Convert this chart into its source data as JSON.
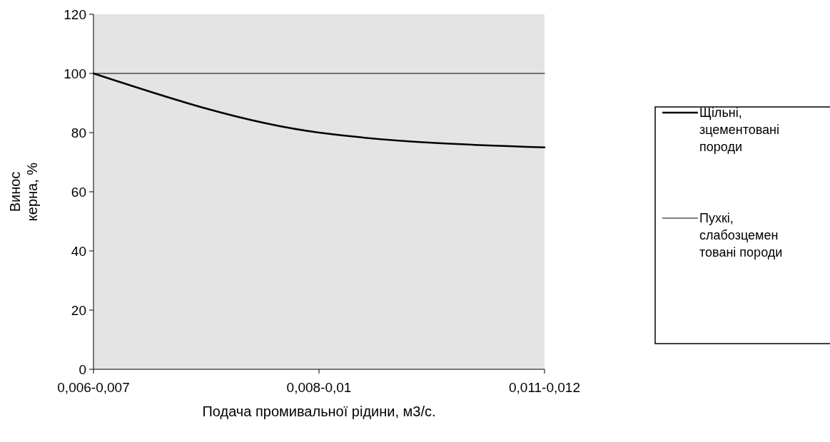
{
  "chart_data": {
    "type": "line",
    "xlabel": "Подача промивальної рідини, м3/с.",
    "ylabel": "Винос керна, %",
    "categories": [
      "0,006-0,007",
      "0,008-0,01",
      "0,011-0,012"
    ],
    "series": [
      {
        "name": "Щільні, зцементовані породи",
        "color": "#000000",
        "values": [
          100,
          80,
          75
        ]
      },
      {
        "name": "Пухкі, слабозцемен товані породи",
        "color": "#000000",
        "values": [
          100,
          100,
          100
        ]
      }
    ],
    "ylim": [
      0,
      120
    ],
    "yticks": [
      0,
      20,
      40,
      60,
      80,
      100,
      120
    ],
    "grid": false,
    "legend": "right",
    "line_style": "solid"
  }
}
